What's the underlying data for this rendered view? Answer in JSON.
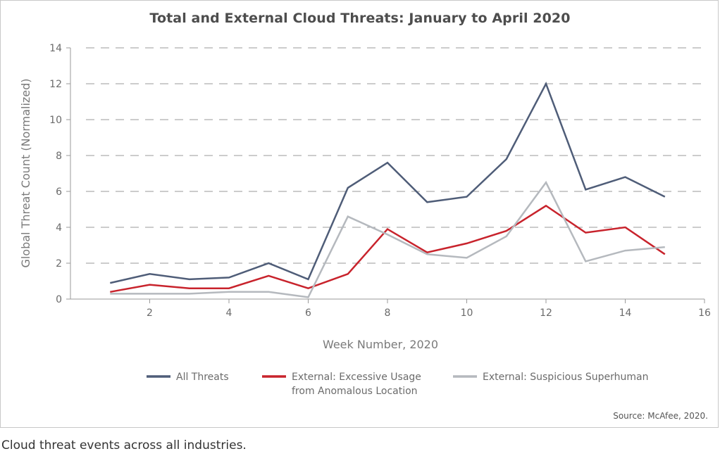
{
  "chart_data": {
    "type": "line",
    "title": "Total and External Cloud Threats: January to April 2020",
    "xlabel": "Week Number, 2020",
    "ylabel": "Global Threat Count (Normalized)",
    "xlim": [
      0,
      16
    ],
    "ylim": [
      0,
      14
    ],
    "xticks": [
      2,
      4,
      6,
      8,
      10,
      12,
      14,
      16
    ],
    "yticks": [
      0,
      2,
      4,
      6,
      8,
      10,
      12,
      14
    ],
    "grid": "horizontal dashed",
    "x": [
      1,
      2,
      3,
      4,
      5,
      6,
      7,
      8,
      9,
      10,
      11,
      12,
      13,
      14,
      15
    ],
    "series": [
      {
        "name": "All Threats",
        "color": "#4f5d78",
        "values": [
          0.9,
          1.4,
          1.1,
          1.2,
          2.0,
          1.1,
          6.2,
          7.6,
          5.4,
          5.7,
          7.8,
          12.0,
          6.1,
          6.8,
          5.7
        ]
      },
      {
        "name": "External: Excessive Usage from Anomalous Location",
        "color": "#c8232c",
        "values": [
          0.4,
          0.8,
          0.6,
          0.6,
          1.3,
          0.6,
          1.4,
          3.9,
          2.6,
          3.1,
          3.8,
          5.2,
          3.7,
          4.0,
          2.5
        ]
      },
      {
        "name": "External: Suspicious Superhuman",
        "color": "#b5b9be",
        "values": [
          0.3,
          0.3,
          0.3,
          0.4,
          0.4,
          0.1,
          4.6,
          3.6,
          2.5,
          2.3,
          3.5,
          6.5,
          2.1,
          2.7,
          2.9
        ]
      }
    ],
    "legend": {
      "position": "bottom",
      "entries": [
        {
          "lines": [
            "All Threats"
          ]
        },
        {
          "lines": [
            "External: Excessive Usage",
            "from Anomalous Location"
          ]
        },
        {
          "lines": [
            "External: Suspicious Superhuman"
          ]
        }
      ]
    }
  },
  "source": "Source: McAfee, 2020.",
  "caption": "Cloud threat events across all industries."
}
